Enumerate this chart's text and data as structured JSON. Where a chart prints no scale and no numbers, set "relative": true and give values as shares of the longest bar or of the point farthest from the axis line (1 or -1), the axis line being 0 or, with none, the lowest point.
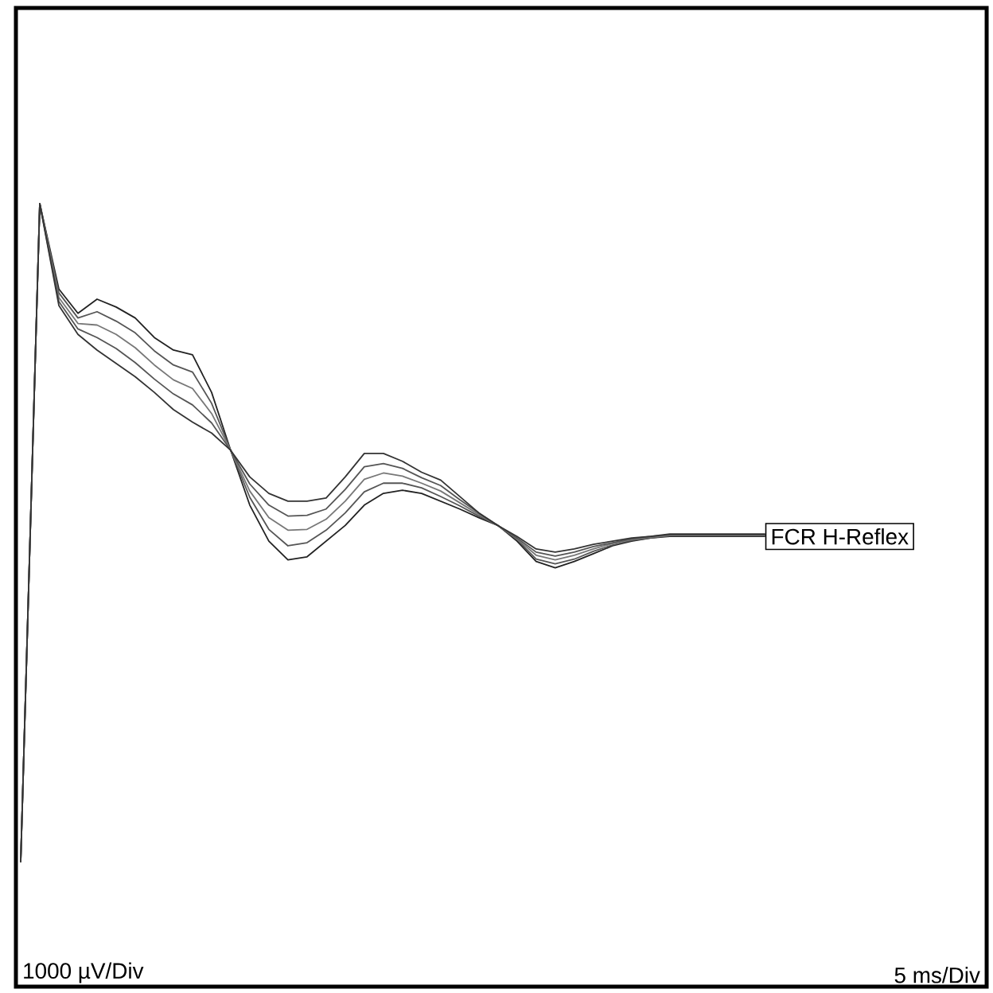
{
  "chart_data": {
    "type": "line",
    "relative": true,
    "categories": [
      null,
      null,
      null,
      null,
      null,
      null,
      null,
      null,
      null,
      null,
      null,
      null,
      null,
      null,
      null,
      null,
      null,
      null,
      null,
      null,
      null,
      null,
      null,
      null,
      null,
      null,
      null,
      null,
      null,
      null,
      null,
      null,
      null,
      null,
      null,
      null,
      null,
      null,
      null,
      null
    ],
    "series": [
      {
        "color": "#222222",
        "values": [
          0.159,
          1,
          0.891,
          0.86,
          0.878,
          0.868,
          0.854,
          0.829,
          0.813,
          0.807,
          0.759,
          0.685,
          0.615,
          0.569,
          0.545,
          0.549,
          0.569,
          0.589,
          0.615,
          0.63,
          0.634,
          0.63,
          0.62,
          0.61,
          0.599,
          0.589,
          0.569,
          0.543,
          0.535,
          0.543,
          0.553,
          0.563,
          0.569,
          0.573,
          0.575,
          0.575,
          0.575,
          0.575,
          0.575,
          0.575
        ]
      },
      {
        "color": "#555555",
        "values": [
          0.159,
          1,
          0.886,
          0.854,
          0.862,
          0.85,
          0.835,
          0.812,
          0.794,
          0.785,
          0.745,
          0.685,
          0.625,
          0.584,
          0.563,
          0.567,
          0.583,
          0.605,
          0.632,
          0.643,
          0.643,
          0.637,
          0.626,
          0.614,
          0.601,
          0.589,
          0.571,
          0.546,
          0.54,
          0.546,
          0.556,
          0.564,
          0.57,
          0.573,
          0.576,
          0.576,
          0.576,
          0.576,
          0.576,
          0.576
        ]
      },
      {
        "color": "#777777",
        "values": [
          0.159,
          1,
          0.88,
          0.847,
          0.845,
          0.833,
          0.816,
          0.794,
          0.775,
          0.764,
          0.732,
          0.685,
          0.633,
          0.599,
          0.583,
          0.584,
          0.597,
          0.62,
          0.648,
          0.656,
          0.652,
          0.643,
          0.633,
          0.618,
          0.603,
          0.589,
          0.572,
          0.551,
          0.545,
          0.551,
          0.559,
          0.566,
          0.571,
          0.574,
          0.576,
          0.576,
          0.576,
          0.576,
          0.576,
          0.576
        ]
      },
      {
        "color": "#555555",
        "values": [
          0.159,
          1,
          0.875,
          0.84,
          0.829,
          0.815,
          0.797,
          0.776,
          0.757,
          0.743,
          0.72,
          0.685,
          0.642,
          0.615,
          0.601,
          0.602,
          0.61,
          0.635,
          0.664,
          0.668,
          0.662,
          0.65,
          0.64,
          0.622,
          0.605,
          0.589,
          0.573,
          0.555,
          0.55,
          0.555,
          0.562,
          0.567,
          0.572,
          0.575,
          0.577,
          0.577,
          0.577,
          0.577,
          0.577,
          0.577
        ]
      },
      {
        "color": "#333333",
        "values": [
          0.159,
          1,
          0.87,
          0.833,
          0.813,
          0.796,
          0.779,
          0.759,
          0.737,
          0.721,
          0.707,
          0.685,
          0.651,
          0.63,
          0.62,
          0.62,
          0.624,
          0.651,
          0.681,
          0.681,
          0.671,
          0.657,
          0.647,
          0.626,
          0.605,
          0.589,
          0.575,
          0.559,
          0.555,
          0.559,
          0.565,
          0.569,
          0.573,
          0.575,
          0.578,
          0.578,
          0.578,
          0.578,
          0.578,
          0.578
        ]
      }
    ],
    "annotations": [
      "1000 µV/Div",
      "5 ms/Div",
      "FCR H-Reflex"
    ]
  }
}
